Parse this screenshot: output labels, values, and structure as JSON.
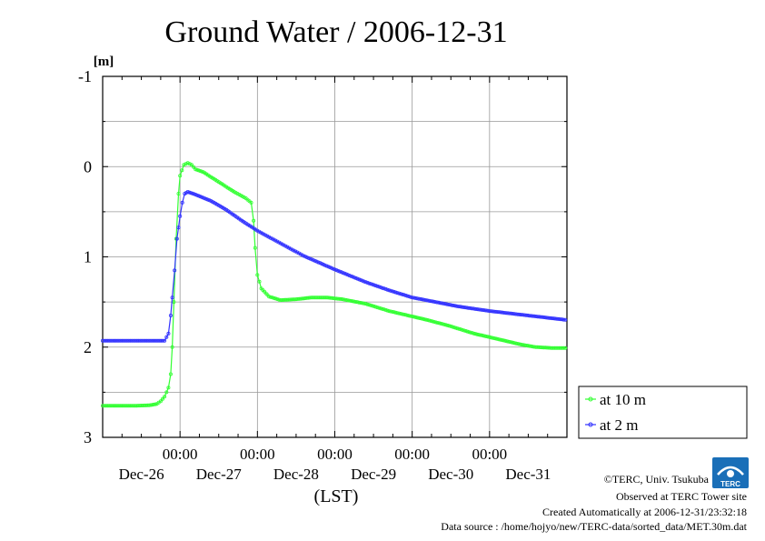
{
  "chart_data": {
    "type": "line",
    "title": "Ground Water / 2006-12-31",
    "y_unit": "[m]",
    "ylim": [
      3,
      -1
    ],
    "y_axis_inverted": true,
    "y_ticks": [
      -1,
      0,
      1,
      2,
      3
    ],
    "y_tick_labels": [
      "-1",
      "0",
      "1",
      "2",
      "3"
    ],
    "xlabel": "(LST)",
    "xlim_days": [
      0,
      6
    ],
    "x_time_labels": [
      "00:00",
      "00:00",
      "00:00",
      "00:00",
      "00:00"
    ],
    "x_date_labels": [
      "Dec-26",
      "Dec-27",
      "Dec-28",
      "Dec-29",
      "Dec-30",
      "Dec-31"
    ],
    "grid": true,
    "legend_position": "right",
    "series": [
      {
        "name": "at 10 m",
        "color": "#33ff33",
        "points": [
          [
            0.0,
            2.65
          ],
          [
            0.4,
            2.65
          ],
          [
            0.6,
            2.645
          ],
          [
            0.7,
            2.63
          ],
          [
            0.75,
            2.6
          ],
          [
            0.8,
            2.55
          ],
          [
            0.85,
            2.45
          ],
          [
            0.88,
            2.3
          ],
          [
            0.9,
            2.0
          ],
          [
            0.92,
            1.5
          ],
          [
            0.95,
            0.8
          ],
          [
            0.98,
            0.3
          ],
          [
            1.0,
            0.1
          ],
          [
            1.05,
            -0.02
          ],
          [
            1.1,
            -0.04
          ],
          [
            1.15,
            -0.02
          ],
          [
            1.2,
            0.03
          ],
          [
            1.3,
            0.06
          ],
          [
            1.5,
            0.17
          ],
          [
            1.7,
            0.28
          ],
          [
            1.85,
            0.35
          ],
          [
            1.92,
            0.4
          ],
          [
            1.95,
            0.6
          ],
          [
            1.97,
            0.9
          ],
          [
            2.0,
            1.2
          ],
          [
            2.05,
            1.35
          ],
          [
            2.15,
            1.44
          ],
          [
            2.3,
            1.48
          ],
          [
            2.5,
            1.47
          ],
          [
            2.7,
            1.45
          ],
          [
            2.9,
            1.45
          ],
          [
            3.1,
            1.47
          ],
          [
            3.4,
            1.52
          ],
          [
            3.7,
            1.6
          ],
          [
            4.0,
            1.66
          ],
          [
            4.2,
            1.7
          ],
          [
            4.5,
            1.77
          ],
          [
            4.8,
            1.85
          ],
          [
            5.0,
            1.89
          ],
          [
            5.2,
            1.93
          ],
          [
            5.4,
            1.97
          ],
          [
            5.6,
            2.0
          ],
          [
            5.8,
            2.01
          ],
          [
            6.0,
            2.01
          ]
        ]
      },
      {
        "name": "at 2 m",
        "color": "#3333ff",
        "points": [
          [
            0.0,
            1.93
          ],
          [
            0.4,
            1.93
          ],
          [
            0.8,
            1.93
          ],
          [
            0.85,
            1.85
          ],
          [
            0.88,
            1.65
          ],
          [
            0.9,
            1.45
          ],
          [
            0.93,
            1.15
          ],
          [
            0.96,
            0.8
          ],
          [
            1.0,
            0.55
          ],
          [
            1.03,
            0.4
          ],
          [
            1.06,
            0.3
          ],
          [
            1.1,
            0.28
          ],
          [
            1.2,
            0.31
          ],
          [
            1.4,
            0.38
          ],
          [
            1.6,
            0.48
          ],
          [
            1.8,
            0.6
          ],
          [
            2.0,
            0.71
          ],
          [
            2.3,
            0.85
          ],
          [
            2.6,
            0.99
          ],
          [
            3.0,
            1.14
          ],
          [
            3.4,
            1.28
          ],
          [
            3.7,
            1.37
          ],
          [
            4.0,
            1.45
          ],
          [
            4.3,
            1.5
          ],
          [
            4.6,
            1.55
          ],
          [
            5.0,
            1.6
          ],
          [
            5.3,
            1.63
          ],
          [
            5.6,
            1.66
          ],
          [
            6.0,
            1.7
          ]
        ]
      }
    ]
  },
  "credits": {
    "copyright": "©TERC, Univ. Tsukuba",
    "observed": "Observed at TERC Tower site",
    "created": "Created Automatically at 2006-12-31/23:32:18",
    "source": "Data source : /home/hojyo/new/TERC-data/sorted_data/MET.30m.dat",
    "logo_text": "TERC"
  }
}
